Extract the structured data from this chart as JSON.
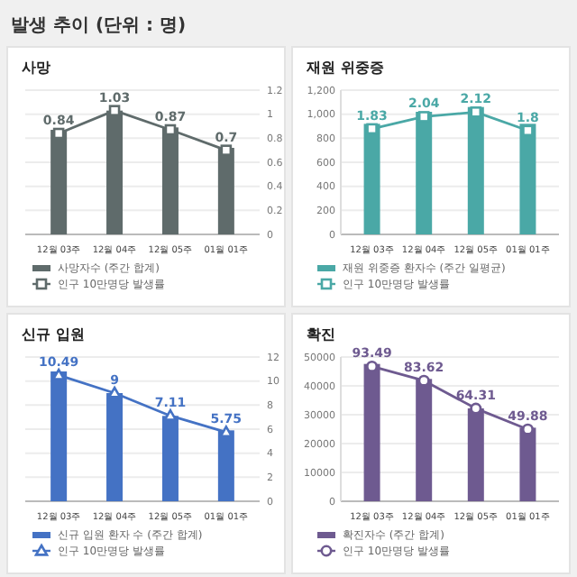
{
  "chart_data": [
    {
      "type": "bar",
      "title": "사망",
      "annotations": [
        "발생 추이 (단위 : 명)"
      ],
      "categories": [
        "12월 03주",
        "12월 04주",
        "12월 05주",
        "01월 01주"
      ],
      "y2lim": [
        0,
        1.2
      ],
      "y2ticks": [
        0,
        0.2,
        0.4,
        0.6,
        0.8,
        1,
        1.2
      ],
      "grid": true,
      "legend": "bottom",
      "series": [
        {
          "name": "사망자수 (주간 합계)",
          "axis": "y2",
          "color": "#5f6b6b",
          "values": [
            0.87,
            1.03,
            0.89,
            0.72
          ]
        },
        {
          "name": "인구 10만명당 발생률",
          "type": "line",
          "axis": "y2",
          "color": "#5f6b6b",
          "marker": "square",
          "values": [
            0.84,
            1.03,
            0.87,
            0.7
          ],
          "value_labels": [
            "0.84",
            "1.03",
            "0.87",
            "0.7"
          ]
        }
      ]
    },
    {
      "type": "bar",
      "title": "재원 위중증",
      "categories": [
        "12월 03주",
        "12월 04주",
        "12월 05주",
        "01월 01주"
      ],
      "ylim": [
        0,
        1200
      ],
      "yticks": [
        0,
        {
          "value": 200,
          "label": "200"
        },
        {
          "value": 400,
          "label": "400"
        },
        {
          "value": 600,
          "label": "600"
        },
        {
          "value": 800,
          "label": "800"
        },
        {
          "value": 1000,
          "label": "1,000"
        },
        {
          "value": 1200,
          "label": "1,200"
        }
      ],
      "y2lim": [
        0,
        2.5
      ],
      "grid": true,
      "legend": "bottom",
      "series": [
        {
          "name": "재원 위중증 환자수 (주간 일평균)",
          "color": "#4aa8a6",
          "values": [
            920,
            1020,
            1060,
            920
          ]
        },
        {
          "name": "인구 10만명당 발생률",
          "type": "line",
          "axis": "y2",
          "color": "#4aa8a6",
          "marker": "square",
          "values": [
            1.83,
            2.04,
            2.12,
            1.8
          ],
          "value_labels": [
            "1.83",
            "2.04",
            "2.12",
            "1.8"
          ]
        }
      ]
    },
    {
      "type": "bar",
      "title": "신규 입원",
      "categories": [
        "12월 03주",
        "12월 04주",
        "12월 05주",
        "01월 01주"
      ],
      "y2lim": [
        0,
        12
      ],
      "y2ticks": [
        0,
        2,
        4,
        6,
        8,
        10,
        12
      ],
      "grid": true,
      "legend": "bottom",
      "series": [
        {
          "name": "신규 입원 환자 수 (주간 합계)",
          "axis": "y2",
          "color": "#4472c4",
          "values": [
            10.8,
            9,
            7.1,
            5.9
          ]
        },
        {
          "name": "인구 10만명당 발생률",
          "type": "line",
          "axis": "y2",
          "color": "#4472c4",
          "marker": "triangle",
          "values": [
            10.49,
            9,
            7.11,
            5.75
          ],
          "value_labels": [
            "10.49",
            "9",
            "7.11",
            "5.75"
          ]
        }
      ]
    },
    {
      "type": "bar",
      "title": "확진",
      "categories": [
        "12월 03주",
        "12월 04주",
        "12월 05주",
        "01월 01주"
      ],
      "ylim": [
        0,
        50000
      ],
      "yticks": [
        0,
        10000,
        20000,
        30000,
        40000,
        50000
      ],
      "y2lim": [
        0,
        100
      ],
      "grid": true,
      "legend": "bottom",
      "series": [
        {
          "name": "확진자수 (주간 합계)",
          "color": "#6e5a90",
          "values": [
            47600,
            42400,
            32200,
            25500
          ]
        },
        {
          "name": "인구 10만명당 발생률",
          "type": "line",
          "axis": "y2",
          "color": "#6e5a90",
          "marker": "circle",
          "values": [
            93.49,
            83.62,
            64.31,
            49.88
          ],
          "value_labels": [
            "93.49",
            "83.62",
            "64.31",
            "49.88"
          ]
        }
      ]
    }
  ]
}
